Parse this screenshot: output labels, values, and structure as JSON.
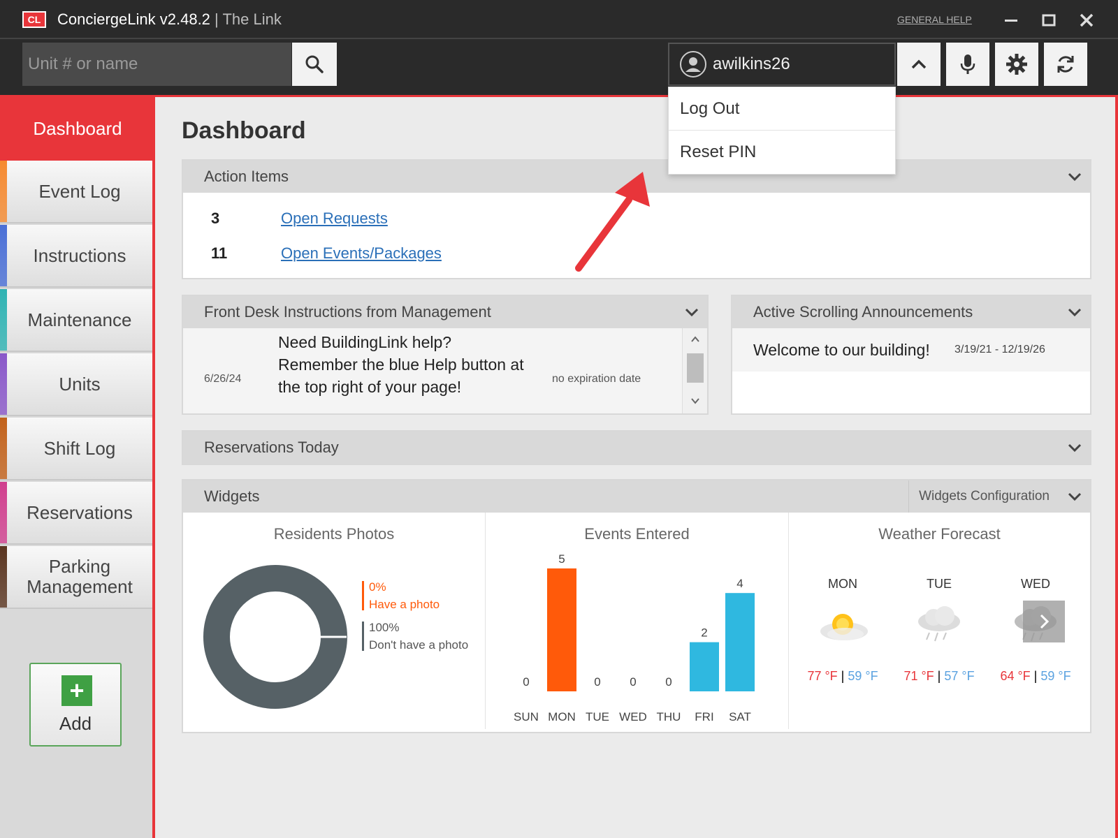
{
  "window": {
    "logo_text": "CL",
    "app_name": "ConciergeLink v2.48.2",
    "separator": " | ",
    "subtitle": "The Link",
    "general_help": "GENERAL HELP"
  },
  "toolbar": {
    "search_placeholder": "Unit # or name",
    "username": "awilkins26"
  },
  "user_menu": {
    "items": [
      "Log Out",
      "Reset PIN"
    ]
  },
  "sidebar": {
    "active": "Dashboard",
    "items": [
      {
        "label": "Event Log",
        "color": "#f58a30"
      },
      {
        "label": "Instructions",
        "color": "#4a6fd6"
      },
      {
        "label": "Maintenance",
        "color": "#2fb3b3"
      },
      {
        "label": "Units",
        "color": "#8a58c9"
      },
      {
        "label": "Shift Log",
        "color": "#c2621b"
      },
      {
        "label": "Reservations",
        "color": "#d03f8e"
      },
      {
        "label": "Parking Management",
        "color": "#5a3520"
      }
    ],
    "add_label": "Add"
  },
  "dashboard": {
    "title": "Dashboard",
    "action_items": {
      "header": "Action Items",
      "rows": [
        {
          "count": "3",
          "label": "Open Requests"
        },
        {
          "count": "11",
          "label": "Open Events/Packages"
        }
      ]
    },
    "front_desk": {
      "header": "Front Desk Instructions from Management",
      "date": "6/26/24",
      "text": "Need BuildingLink help? Remember the blue Help button at the top right of your page!",
      "expiration": "no expiration date"
    },
    "announcements": {
      "header": "Active Scrolling Announcements",
      "text": "Welcome to our building!",
      "dates": "3/19/21 - 12/19/26"
    },
    "reservations": {
      "header": "Reservations Today"
    },
    "widgets": {
      "header": "Widgets",
      "config_label": "Widgets Configuration",
      "residents_photos": {
        "title": "Residents Photos",
        "have_pct": "0%",
        "have_label": "Have a photo",
        "not_pct": "100%",
        "not_label": "Don't have a photo"
      },
      "events_entered": {
        "title": "Events Entered"
      },
      "weather": {
        "title": "Weather Forecast",
        "days": [
          {
            "day": "MON",
            "icon": "sun-cloud-icon",
            "hi": "77 °F",
            "lo": "59 °F"
          },
          {
            "day": "TUE",
            "icon": "rain-cloud-icon",
            "hi": "71 °F",
            "lo": "57 °F"
          },
          {
            "day": "WED",
            "icon": "rain-cloud-icon",
            "hi": "64 °F",
            "lo": "59 °F"
          }
        ],
        "temp_sep": " | "
      }
    }
  },
  "chart_data": {
    "type": "bar",
    "categories": [
      "SUN",
      "MON",
      "TUE",
      "WED",
      "THU",
      "FRI",
      "SAT"
    ],
    "values": [
      0,
      5,
      0,
      0,
      0,
      2,
      4
    ],
    "colors": [
      "#ff5a0a",
      "#ff5a0a",
      "#ff5a0a",
      "#2fb8e0",
      "#2fb8e0",
      "#2fb8e0",
      "#2fb8e0"
    ],
    "title": "Events Entered",
    "ylim": [
      0,
      5
    ]
  },
  "colors": {
    "accent": "#e8353a",
    "orange": "#ff5a0a",
    "blue": "#2fb8e0",
    "donut": "#566166"
  }
}
